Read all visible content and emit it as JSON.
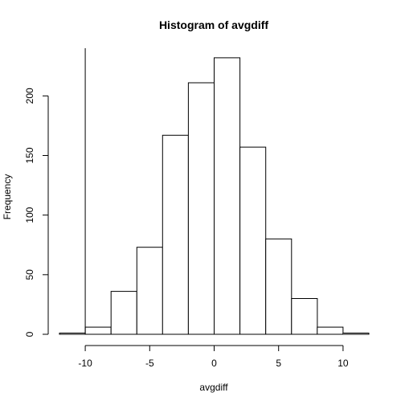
{
  "chart_data": {
    "type": "bar",
    "title": "Histogram of avgdiff",
    "xlabel": "avgdiff",
    "ylabel": "Frequency",
    "bins": [
      {
        "start": -12,
        "end": -10,
        "count": 1
      },
      {
        "start": -10,
        "end": -8,
        "count": 6
      },
      {
        "start": -8,
        "end": -6,
        "count": 36
      },
      {
        "start": -6,
        "end": -4,
        "count": 73
      },
      {
        "start": -4,
        "end": -2,
        "count": 167
      },
      {
        "start": -2,
        "end": 0,
        "count": 211
      },
      {
        "start": 0,
        "end": 2,
        "count": 232
      },
      {
        "start": 2,
        "end": 4,
        "count": 157
      },
      {
        "start": 4,
        "end": 6,
        "count": 80
      },
      {
        "start": 6,
        "end": 8,
        "count": 30
      },
      {
        "start": 8,
        "end": 10,
        "count": 6
      },
      {
        "start": 10,
        "end": 12,
        "count": 1
      }
    ],
    "xlim": [
      -12,
      12
    ],
    "ylim": [
      0,
      240
    ],
    "xticks": [
      -10,
      -5,
      0,
      5,
      10
    ],
    "xtick_labels": [
      "-10",
      "-5",
      "0",
      "5",
      "10"
    ],
    "yticks": [
      0,
      50,
      100,
      150,
      200
    ],
    "ytick_labels": [
      "0",
      "50",
      "100",
      "150",
      "200"
    ],
    "reference_line_x": -10,
    "grid": false,
    "legend": "none"
  }
}
